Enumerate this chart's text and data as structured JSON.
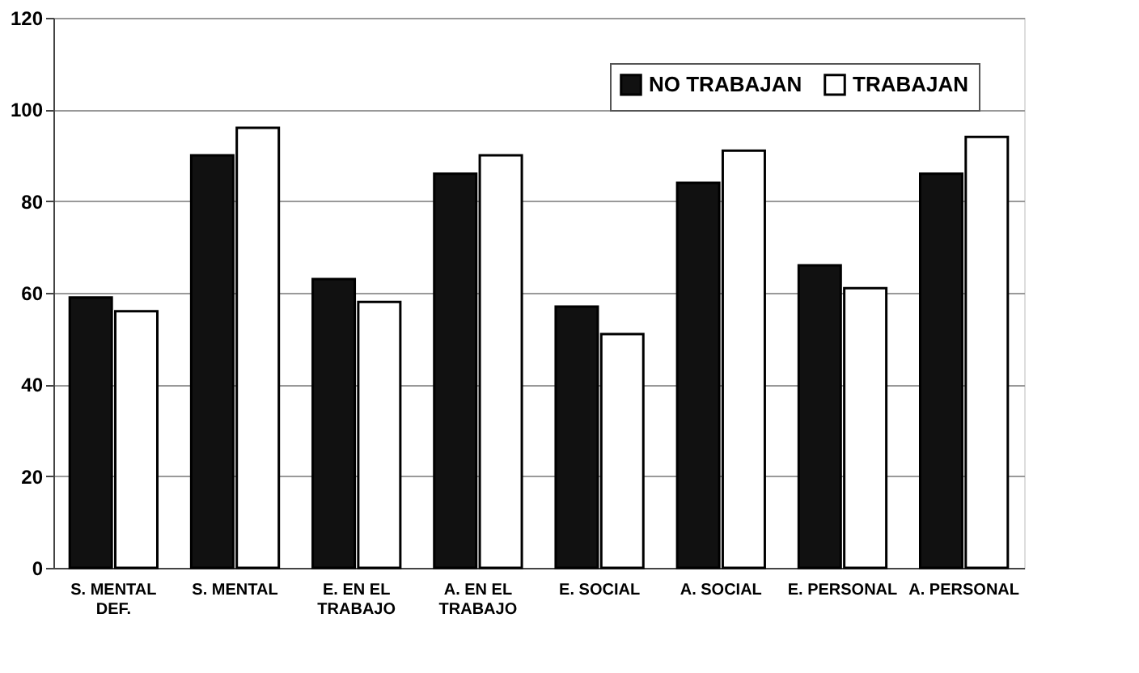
{
  "chart_data": {
    "type": "bar",
    "categories": [
      "S. MENTAL\nDEF.",
      "S. MENTAL",
      "E. EN EL\nTRABAJO",
      "A. EN EL\nTRABAJO",
      "E. SOCIAL",
      "A. SOCIAL",
      "E. PERSONAL",
      "A. PERSONAL"
    ],
    "series": [
      {
        "name": "NO TRABAJAN",
        "color": "#111111",
        "values": [
          59,
          90,
          63,
          86,
          57,
          84,
          66,
          86
        ]
      },
      {
        "name": "TRABAJAN",
        "color": "#ffffff",
        "values": [
          56,
          96,
          58,
          90,
          51,
          91,
          61,
          94
        ]
      }
    ],
    "ylim": [
      0,
      120
    ],
    "yticks": [
      0,
      20,
      40,
      60,
      80,
      100,
      120
    ],
    "grid": "y",
    "legend": "top right"
  }
}
